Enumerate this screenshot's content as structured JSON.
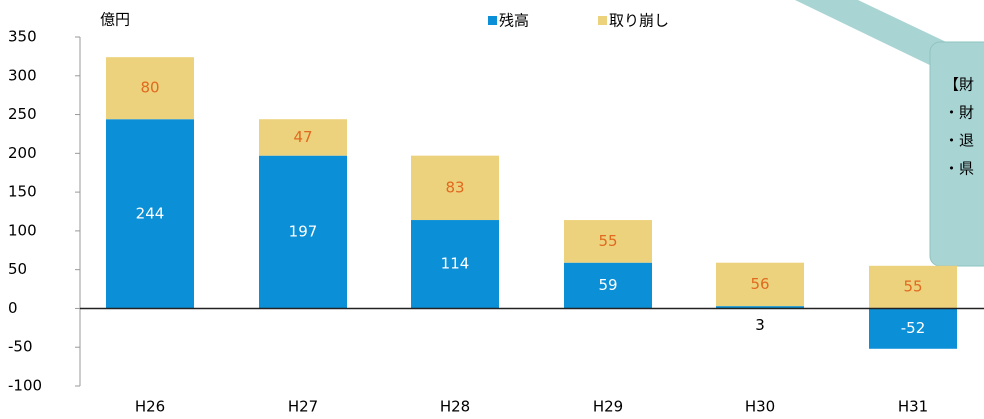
{
  "chart_data": {
    "type": "stacked_bar",
    "unit_label": "億円",
    "categories": [
      "H26",
      "H27",
      "H28",
      "H29",
      "H30",
      "H31"
    ],
    "series": [
      {
        "name": "残高",
        "color": "#0b8fd6",
        "label_color": "#ffffff",
        "values": [
          244,
          197,
          114,
          59,
          3,
          -52
        ]
      },
      {
        "name": "取り崩し",
        "color": "#edd27e",
        "label_color": "#e06a1e",
        "values": [
          80,
          47,
          83,
          55,
          56,
          55
        ]
      }
    ],
    "ylim": [
      -100,
      350
    ],
    "yticks": [
      -100,
      -50,
      0,
      50,
      100,
      150,
      200,
      250,
      300,
      350
    ]
  },
  "callout": {
    "lines": [
      "【財",
      "・財",
      "・退",
      "・県"
    ]
  }
}
